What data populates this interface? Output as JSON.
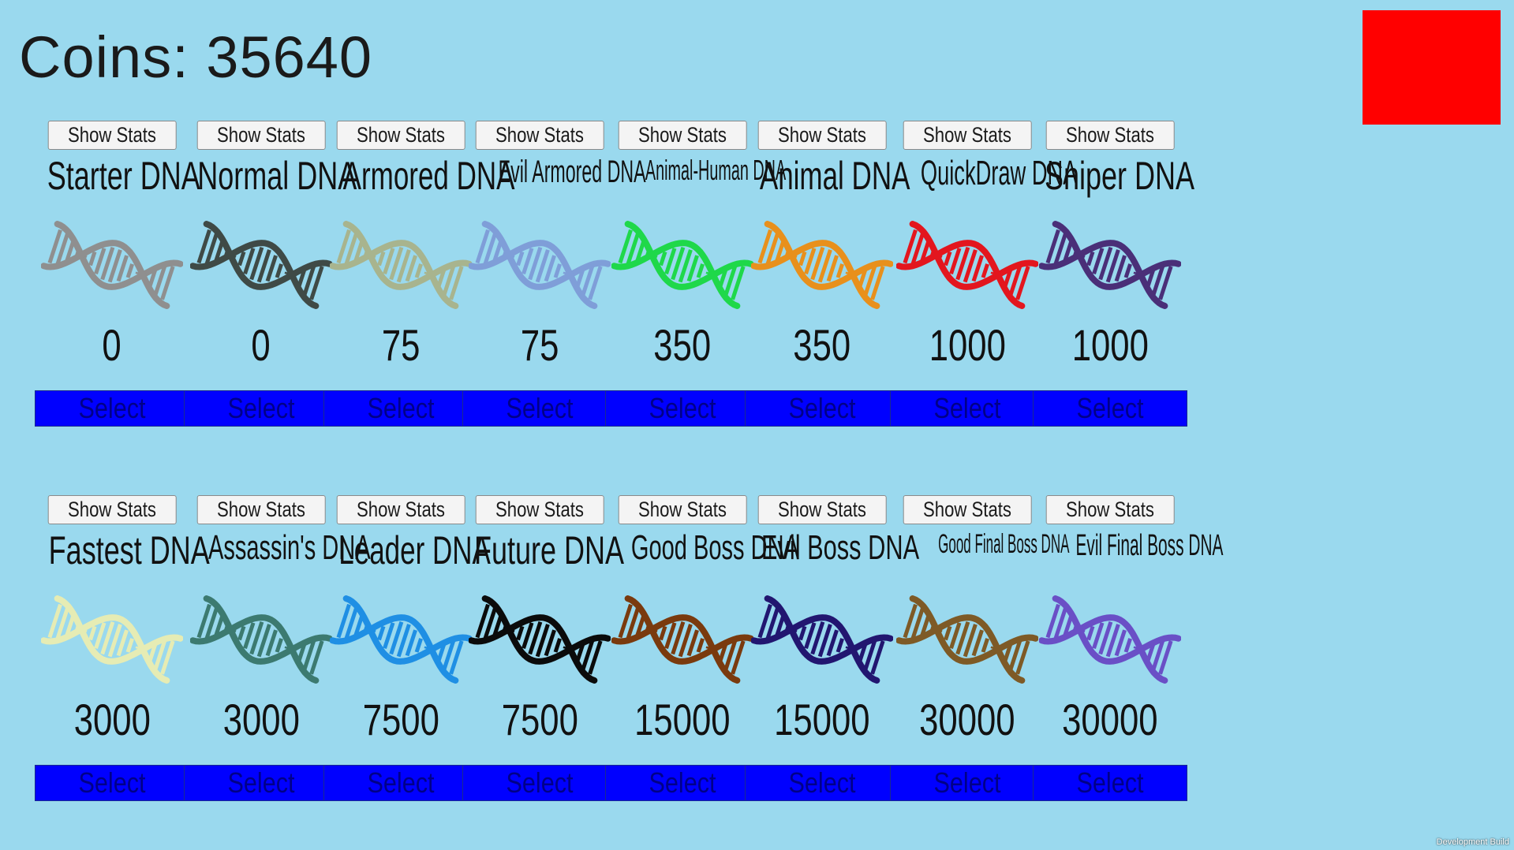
{
  "coins_label": "Coins: 35640",
  "dev_build_label": "Development Build",
  "stats_label": "Show Stats",
  "select_label": "Select",
  "dna_rows": [
    [
      {
        "name": "Starter DNA",
        "price": "0",
        "color": "#8f8f8f"
      },
      {
        "name": "Normal DNA",
        "price": "0",
        "color": "#3f4a46"
      },
      {
        "name": "Armored DNA",
        "price": "75",
        "color": "#a8b48e"
      },
      {
        "name": "Evil Armored DNA",
        "price": "75",
        "color": "#7f9ed8"
      },
      {
        "name": "Animal-Human DNA",
        "price": "350",
        "color": "#1fd84a"
      },
      {
        "name": "Animal DNA",
        "price": "350",
        "color": "#e8901c"
      },
      {
        "name": "QuickDraw DNA",
        "price": "1000",
        "color": "#e3161e"
      },
      {
        "name": "Sniper DNA",
        "price": "1000",
        "color": "#4a2f78"
      }
    ],
    [
      {
        "name": "Fastest DNA",
        "price": "3000",
        "color": "#e6ecb4"
      },
      {
        "name": "Assassin's DNA",
        "price": "3000",
        "color": "#3c7a70"
      },
      {
        "name": "Leader DNA",
        "price": "7500",
        "color": "#1f8fe4"
      },
      {
        "name": "Future DNA",
        "price": "7500",
        "color": "#0b0b0b"
      },
      {
        "name": "Good Boss DNA",
        "price": "15000",
        "color": "#7a3a0e"
      },
      {
        "name": "Evil Boss DNA",
        "price": "15000",
        "color": "#221670"
      },
      {
        "name": "Good Final Boss DNA",
        "price": "30000",
        "color": "#7e5a26"
      },
      {
        "name": "Evil Final Boss DNA",
        "price": "30000",
        "color": "#6a4fc6"
      }
    ]
  ],
  "icons": {
    "helix": "dna-helix-icon",
    "close": "close-square"
  }
}
